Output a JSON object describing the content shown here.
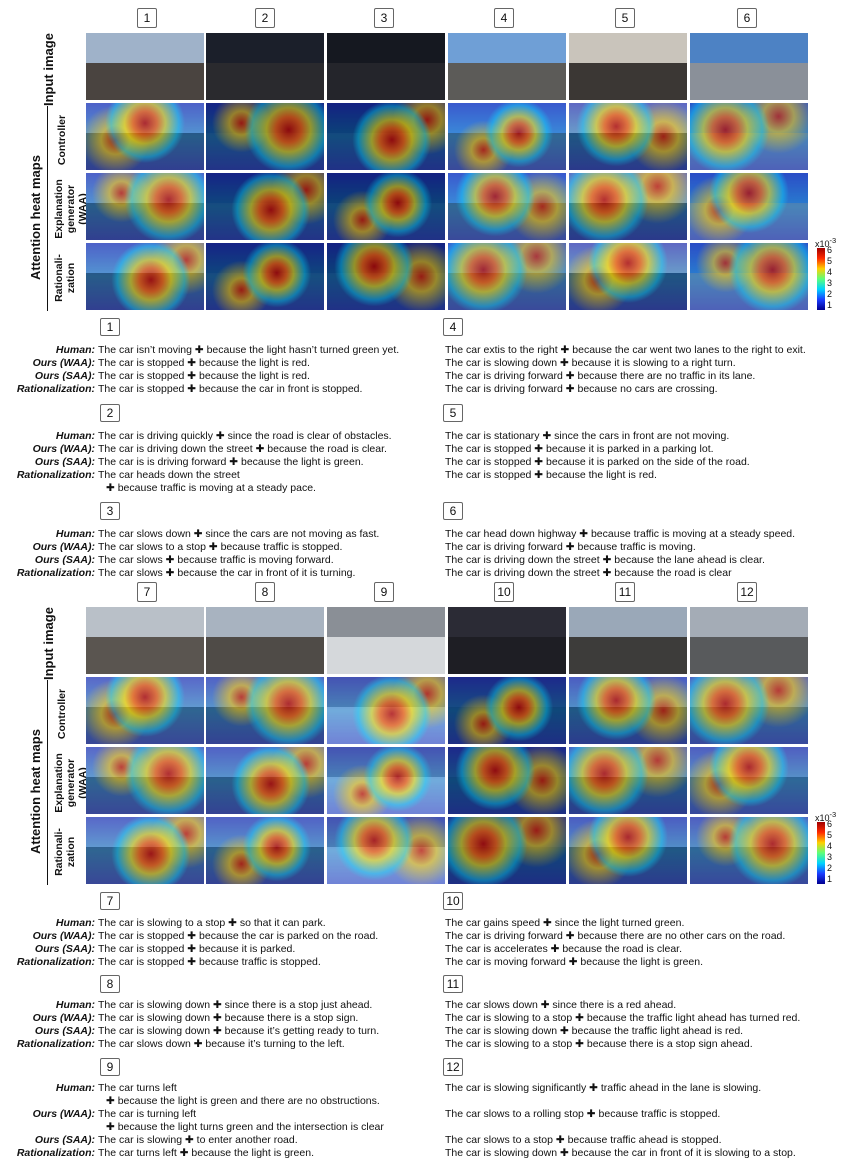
{
  "row_labels": {
    "input": "Input image",
    "attention_group": "Attention heat maps",
    "controller": "Controller",
    "explanation": "Explanation generator (WAA)",
    "rationalization": "Rationali- zation"
  },
  "colorbar": {
    "exponent_label": "x10",
    "exponent": "-3",
    "ticks": [
      "6",
      "5",
      "4",
      "3",
      "2",
      "1"
    ]
  },
  "figure_top": {
    "columns": [
      "1",
      "2",
      "3",
      "4",
      "5",
      "6"
    ]
  },
  "figure_bottom": {
    "columns": [
      "7",
      "8",
      "9",
      "10",
      "11",
      "12"
    ]
  },
  "labels": {
    "human": "Human:",
    "waa": "Ours (WAA):",
    "saa": "Ours (SAA):",
    "rat": "Rationalization:"
  },
  "captions": [
    {
      "id": "1",
      "lines": [
        "The car isn’t moving ✚ because the light hasn’t turned green yet.",
        "The car is stopped ✚ because the light is red.",
        "The car is stopped ✚ because the light is red.",
        "The car is stopped ✚ because the car in front is stopped."
      ]
    },
    {
      "id": "2",
      "lines": [
        "The car is driving quickly ✚ since the road is clear of obstacles.",
        "The car is driving down the street ✚ because the road is clear.",
        "The car is is driving forward ✚ because the light is green.",
        "The car heads down the street",
        "✚ because traffic is moving at a steady pace."
      ]
    },
    {
      "id": "3",
      "lines": [
        "The car slows down ✚ since the cars are not moving as fast.",
        "The car slows to a stop ✚ because traffic is stopped.",
        "The car slows ✚ because traffic is moving forward.",
        "The car slows ✚ because the car in front of it is turning."
      ]
    },
    {
      "id": "4",
      "lines": [
        "The car extis to the right ✚ because the car went two lanes to the right to exit.",
        "The car is slowing down ✚ because it is slowing to a right turn.",
        "The car is driving forward ✚ because there are no traffic in its lane.",
        "The car is driving forward ✚ because no cars are crossing."
      ]
    },
    {
      "id": "5",
      "lines": [
        "The car is stationary ✚ since the cars in front are not moving.",
        "The car is stopped ✚ because it is parked in a parking lot.",
        "The car is stopped ✚ because it is parked on the side of the road.",
        "The car is stopped ✚ because the light is red."
      ]
    },
    {
      "id": "6",
      "lines": [
        "The car head down highway ✚ because traffic is moving at a steady speed.",
        "The car is driving forward ✚ because traffic is moving.",
        "The car is driving down the street ✚ because the lane ahead is clear.",
        "The car is driving down the street ✚ because the road is clear"
      ]
    },
    {
      "id": "7",
      "lines": [
        "The car is slowing to a stop ✚ so that it can park.",
        "The car is stopped ✚ because the car is parked on the road.",
        "The car is stopped ✚ because it is parked.",
        "The car is stopped ✚ because traffic is stopped."
      ]
    },
    {
      "id": "8",
      "lines": [
        "The car is slowing down ✚ since there is a stop just ahead.",
        "The car is slowing down ✚ because there is a stop sign.",
        "The car is slowing down ✚ because it’s getting ready to turn.",
        "The car slows down ✚ because it’s turning to the left."
      ]
    },
    {
      "id": "9",
      "lines": [
        "The car turns left",
        "✚ because the light is green and there are no obstructions.",
        "The car is turning left",
        "✚ because the light turns green and the intersection is clear",
        "The car is slowing ✚ to enter another road.",
        "The car turns left ✚ because the light is green."
      ]
    },
    {
      "id": "10",
      "lines": [
        "The car gains speed ✚ since the light turned green.",
        "The car is driving forward ✚ because there are no other cars on the road.",
        "The car is accelerates ✚ because the road is clear.",
        "The car is moving forward ✚ because the light is green."
      ]
    },
    {
      "id": "11",
      "lines": [
        "The car slows down ✚ since there is a red ahead.",
        "The car is slowing to a stop ✚ because the traffic light ahead has turned red.",
        "The car is slowing down ✚ because the traffic light ahead is red.",
        "The car is slowing to a stop ✚ because there is a stop sign ahead."
      ]
    },
    {
      "id": "12",
      "lines": [
        "The car is slowing significantly ✚ traffic ahead in the lane is slowing.",
        "The car slows to a rolling stop ✚ because traffic is stopped.",
        "The car slows to a stop ✚ because traffic ahead is stopped.",
        "The car is slowing down ✚ because the car in front of it is slowing to a stop."
      ]
    }
  ]
}
